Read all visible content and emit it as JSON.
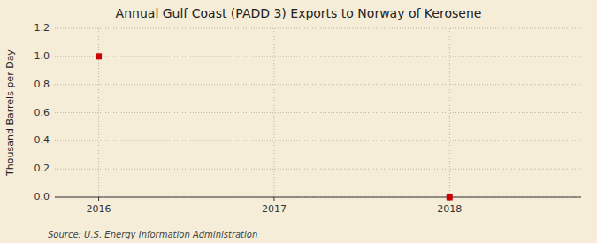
{
  "chart_data": {
    "type": "scatter",
    "title": "Annual Gulf Coast (PADD 3) Exports to Norway of Kerosene",
    "y_label": "Thousand Barrels per Day",
    "annotations": [
      "Source: U.S. Energy Information Administration"
    ],
    "x": [
      2016,
      2018
    ],
    "values": [
      1.0,
      0.0
    ],
    "color": "#cc0000",
    "marker": "square",
    "xlim": [
      2015.75,
      2018.75
    ],
    "ylim": [
      0.0,
      1.2
    ],
    "xticks": [
      2016,
      2017,
      2018
    ],
    "yticks": [
      {
        "value": 0.0,
        "label": "0.0"
      },
      0.2,
      0.4,
      0.6,
      0.8,
      {
        "value": 1.0,
        "label": "1.0"
      },
      1.2
    ],
    "grid": true
  }
}
